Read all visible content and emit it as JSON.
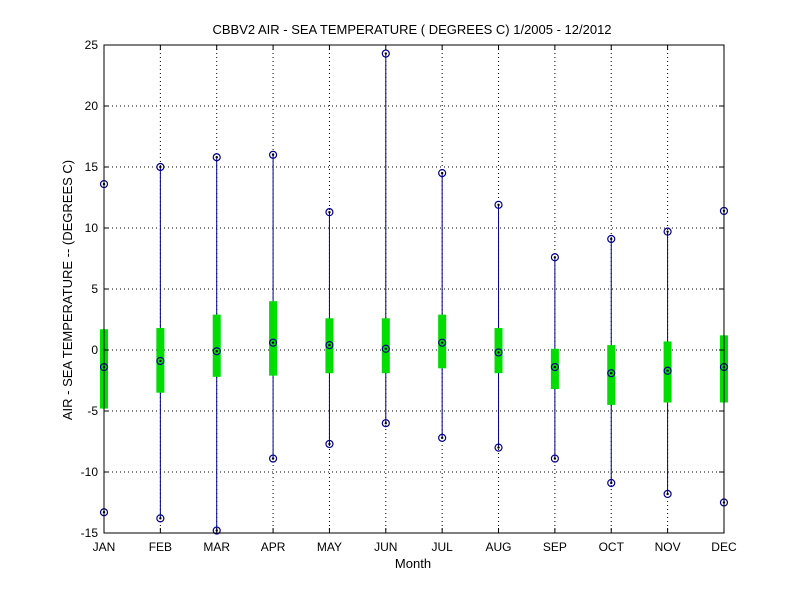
{
  "chart_data": {
    "type": "box",
    "title": "CBBV2  AIR - SEA TEMPERATURE ( DEGREES C) 1/2005 - 12/2012",
    "xlabel": "Month",
    "ylabel": "AIR - SEA TEMPERATURE -- (DEGREES C)",
    "ylim": [
      -15,
      25
    ],
    "yticks": [
      -15,
      -10,
      -5,
      0,
      5,
      10,
      15,
      20,
      25
    ],
    "grid": true,
    "categories": [
      "JAN",
      "FEB",
      "MAR",
      "APR",
      "MAY",
      "JUN",
      "JUL",
      "AUG",
      "SEP",
      "OCT",
      "NOV",
      "DEC"
    ],
    "series": [
      {
        "min": [
          -13.3,
          -13.8,
          -14.8,
          -8.9,
          -7.7,
          -6.0,
          -7.2,
          -8.0,
          -8.9,
          -10.9,
          -11.8,
          -12.5
        ],
        "q1": [
          -4.8,
          -3.5,
          -2.2,
          -2.1,
          -1.9,
          -1.9,
          -1.5,
          -1.9,
          -3.2,
          -4.5,
          -4.3,
          -4.3
        ],
        "median": [
          -1.4,
          -0.9,
          -0.1,
          0.6,
          0.4,
          0.1,
          0.6,
          -0.2,
          -1.4,
          -1.9,
          -1.7,
          -1.4
        ],
        "q3": [
          1.7,
          1.8,
          2.9,
          4.0,
          2.6,
          2.6,
          2.9,
          1.8,
          0.1,
          0.4,
          0.7,
          1.2
        ],
        "max": [
          13.6,
          15.0,
          15.8,
          16.0,
          11.3,
          24.3,
          14.5,
          11.9,
          7.6,
          9.1,
          9.7,
          11.4
        ]
      }
    ],
    "colors": {
      "whisker": "#00008b",
      "box": "#00dd00",
      "marker": "#000000",
      "grid": "#000000"
    }
  }
}
